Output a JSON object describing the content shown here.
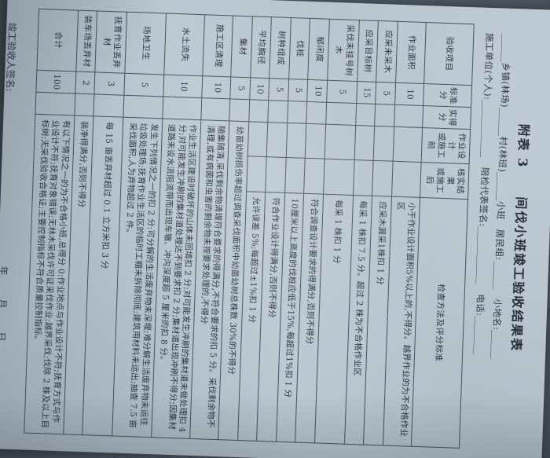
{
  "colors": {
    "paper": "#b9c7d0",
    "ink": "#2c3642",
    "grid_line": "#46525d",
    "background": "#4c585f"
  },
  "page": {
    "title": "附表 3　　间伐小班竣工验收结果表",
    "form_line1": "______乡镇(林场)______村(林班)______小班　居民组:______　小地名:______",
    "form_line2": "施工单位(个人):____________　陪检代表签名:____________　电话:________"
  },
  "table": {
    "headers": {
      "item": "验收项目",
      "standard": "标准\n分",
      "actual": "实得\n分",
      "before": "作业设计\n或施工前",
      "after": "核实结果\n或施工后",
      "method": "检查方法及评分标准"
    },
    "rows": [
      {
        "item": "作业面积",
        "standard": "10",
        "actual": "",
        "merged": false,
        "method": "小于作业设计面积5%以上的,不得分。越界作业的为不合格作业区"
      },
      {
        "item": "应采未采木",
        "standard": "5",
        "actual": "",
        "merged": false,
        "method": "应采木漏采1株扣 1 分"
      },
      {
        "item": "应采目标树",
        "standard": "15",
        "actual": "",
        "merged": false,
        "method": "每采 1 株扣 7.5 分。超过 2 株为不合格作业区"
      },
      {
        "item": "采伐未挂号树木",
        "standard": "5",
        "actual": "",
        "merged": false,
        "method": "每采 1 株扣 1 分"
      },
      {
        "item": "郁闭度",
        "standard": "10",
        "actual": "",
        "merged": false,
        "method": "符合调查设计要求的得满分,否则不得分"
      },
      {
        "item": "伐桩",
        "standard": "5",
        "actual": "",
        "merged": false,
        "method": "10厘米以上高度的伐桩应低于15%,每超过1%扣 1 分"
      },
      {
        "item": "树种组成",
        "standard": "5",
        "actual": "",
        "merged": false,
        "method": "符合作业设计得满分,否则不得分"
      },
      {
        "item": "平均胸径",
        "standard": "10",
        "actual": "",
        "merged": false,
        "method": "允许误差 5%;每超过±1%扣 1 分"
      },
      {
        "item": "集材",
        "standard": "5",
        "actual": "",
        "merged": true,
        "method": "幼苗幼树损伤率超过调查采伐面积中幼苗幼树总株数 30%的不得分"
      },
      {
        "item": "施工区清理",
        "standard": "10",
        "actual": "",
        "merged": true,
        "method": "随集随清,采伐剩余物清理符合要求的得满分,不符合要求的扣 5 分。采伐剩余物不清理,或有病菌和虫害的剩余物未按要求处理的,不得分"
      },
      {
        "item": "水土流失",
        "standard": "10",
        "actual": "",
        "merged": true,
        "method": "作业生活区建设时破坏的山体未回填扣 2 分;对可能发生冲刷的集材道未做处理扣 4 分;对可能发生冲刷的集材道处理达不到要求扣 2 分;集材道出现冲刷不得分;因集材道路未设水流阻流带而出现车辙、冲沟深度超 5 厘米的扣 8 分。"
      },
      {
        "item": "场地卫生",
        "standard": "5",
        "actual": "",
        "merged": true,
        "method": "发生下列情况之一的扣 2 分:可分解的生活废弃物未深埋;难分解生活废弃物未运往垃圾处理场;抚育作业生活区的临时工棚未拆除彻底;建筑用材料未运出;抽查 7.5 亩采伐面积,人为弃物超过 2 件。"
      },
      {
        "item": "抚育作业丢弃材",
        "standard": "3",
        "actual": "",
        "merged": true,
        "method": "每 15 亩丢弃材超过 0.1 立方米扣 3 分"
      },
      {
        "item": "装车场丢弃材",
        "standard": "2",
        "actual": "",
        "merged": true,
        "method": "装净得满分,否则不得分"
      },
      {
        "item": "合计",
        "standard": "100",
        "actual": "",
        "merged": true,
        "method": "有以下情况之一的为不合格小班,总得分 0:作业地点与作业设计不符;抚育方式与作业设计不符;抚育对象错误;无林木采伐许可证采伐作业;越界采伐;伐除 2 株及以上目标树;无采伐验收合格证;主要控制指标不符合质量控制指标。"
      }
    ]
  },
  "footer": {
    "sign_label": "竣工验收人签名:",
    "date_label": "年　　月　　日"
  }
}
